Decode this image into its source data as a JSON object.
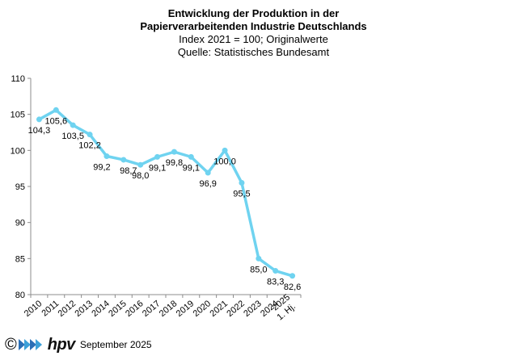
{
  "header": {
    "title_line1": "Entwicklung der Produktion in der",
    "title_line2": "Papierverarbeitenden Industrie Deutschlands",
    "subtitle": "Index 2021 = 100; Originalwerte",
    "source": "Quelle: Statistisches Bundesamt"
  },
  "footer": {
    "copyright": "©",
    "logo_text": "hpv",
    "date": "September 2025"
  },
  "chart_data": {
    "type": "line",
    "categories": [
      "2010",
      "2011",
      "2012",
      "2013",
      "2014",
      "2015",
      "2016",
      "2017",
      "2018",
      "2019",
      "2020",
      "2021",
      "2022",
      "2023",
      "2024",
      "1. Hj. 2025"
    ],
    "series": [
      {
        "values": [
          104.3,
          105.6,
          103.5,
          102.2,
          99.2,
          98.7,
          98.0,
          99.1,
          99.8,
          99.1,
          96.9,
          100.0,
          95.5,
          85.0,
          83.3,
          82.6
        ],
        "labels": [
          "104,3",
          "105,6",
          "103,5",
          "102,2",
          "99,2",
          "98,7",
          "98,0",
          "99,1",
          "99,8",
          "99,1",
          "96,9",
          "100,0",
          "95,5",
          "85,0",
          "83,3",
          "82,6"
        ]
      }
    ],
    "ylim": [
      80,
      110
    ],
    "yticks": [
      80,
      85,
      90,
      95,
      100,
      105,
      110
    ],
    "grid": false,
    "line_color": "#6fd3f0",
    "axis_color": "#8c8c8c"
  }
}
